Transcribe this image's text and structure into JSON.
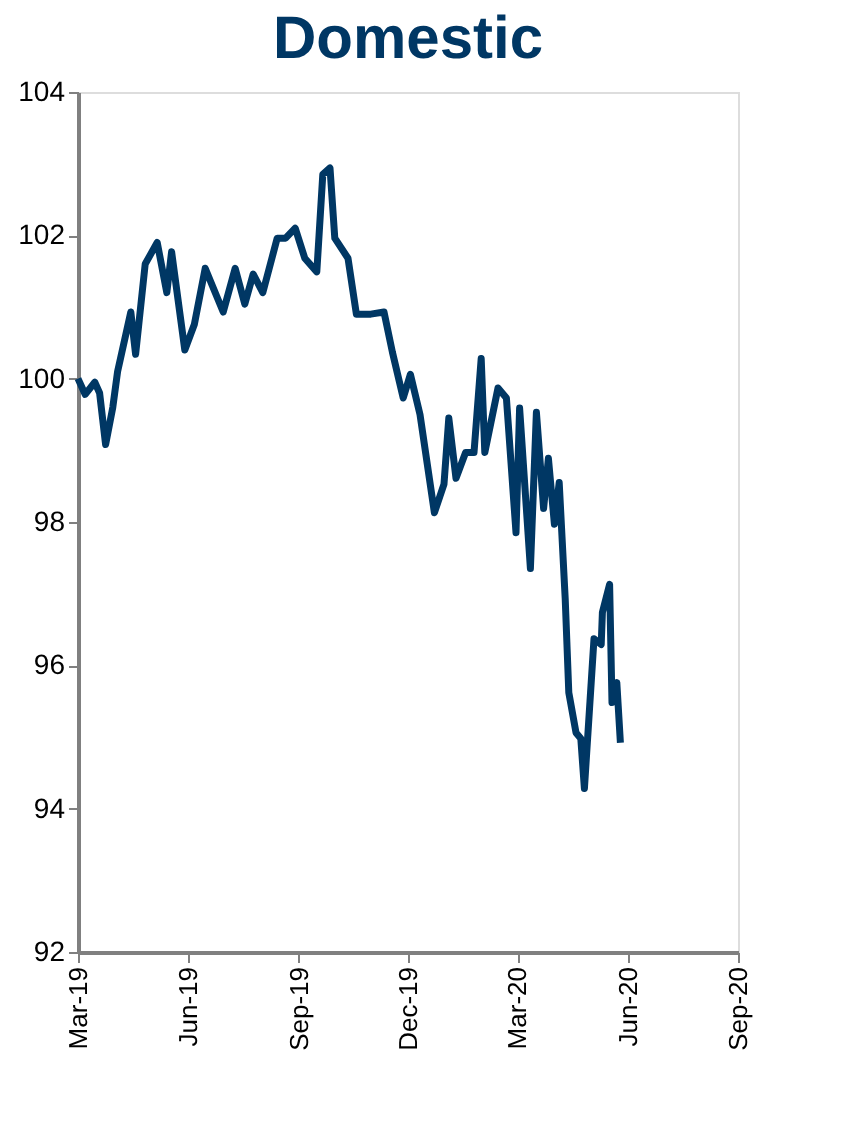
{
  "chart_data": {
    "type": "line",
    "title": "Domestic",
    "x": [
      "2019-03-01",
      "2019-03-07",
      "2019-03-15",
      "2019-03-19",
      "2019-03-24",
      "2019-03-30",
      "2019-04-03",
      "2019-04-14",
      "2019-04-18",
      "2019-04-26",
      "2019-05-06",
      "2019-05-14",
      "2019-05-18",
      "2019-05-29",
      "2019-06-06",
      "2019-06-15",
      "2019-06-30",
      "2019-07-10",
      "2019-07-18",
      "2019-07-25",
      "2019-08-02",
      "2019-08-14",
      "2019-08-21",
      "2019-08-29",
      "2019-09-06",
      "2019-09-16",
      "2019-09-21",
      "2019-09-27",
      "2019-10-01",
      "2019-10-12",
      "2019-10-19",
      "2019-10-31",
      "2019-11-11",
      "2019-11-18",
      "2019-11-27",
      "2019-12-03",
      "2019-12-11",
      "2019-12-23",
      "2019-12-31",
      "2020-01-04",
      "2020-01-10",
      "2020-01-18",
      "2020-01-25",
      "2020-01-31",
      "2020-02-03",
      "2020-02-14",
      "2020-02-21",
      "2020-02-29",
      "2020-03-03",
      "2020-03-12",
      "2020-03-17",
      "2020-03-23",
      "2020-03-27",
      "2020-04-01",
      "2020-04-05",
      "2020-04-10",
      "2020-04-13",
      "2020-04-19",
      "2020-04-23",
      "2020-04-26",
      "2020-05-04",
      "2020-05-10",
      "2020-05-11",
      "2020-05-17",
      "2020-05-19",
      "2020-05-23",
      "2020-05-26"
    ],
    "series": [
      {
        "color": "#003764",
        "values": [
          100.0,
          99.78,
          99.95,
          99.8,
          99.08,
          99.6,
          100.1,
          100.93,
          100.34,
          101.6,
          101.9,
          101.2,
          101.77,
          100.4,
          100.76,
          101.54,
          100.93,
          101.54,
          101.04,
          101.46,
          101.2,
          101.96,
          101.96,
          102.1,
          101.68,
          101.49,
          102.85,
          102.94,
          101.96,
          101.68,
          100.9,
          100.9,
          100.93,
          100.37,
          99.73,
          100.06,
          99.5,
          98.13,
          98.53,
          99.45,
          98.61,
          98.97,
          98.97,
          100.28,
          98.97,
          99.87,
          99.73,
          97.85,
          99.59,
          97.35,
          99.53,
          98.19,
          98.89,
          97.97,
          98.55,
          96.93,
          95.62,
          95.06,
          94.98,
          94.28,
          96.37,
          96.29,
          96.74,
          97.13,
          95.48,
          95.76,
          94.92
        ]
      }
    ],
    "xlim": [
      "2019-03-01",
      "2020-09-01"
    ],
    "xticks": [
      {
        "value": "2019-03-01",
        "label": "Mar-19"
      },
      {
        "value": "2019-06-01",
        "label": "Jun-19"
      },
      {
        "value": "2019-09-01",
        "label": "Sep-19"
      },
      {
        "value": "2019-12-01",
        "label": "Dec-19"
      },
      {
        "value": "2020-03-01",
        "label": "Mar-20"
      },
      {
        "value": "2020-06-01",
        "label": "Jun-20"
      },
      {
        "value": "2020-09-01",
        "label": "Sep-20"
      }
    ],
    "ylim": [
      92,
      104
    ],
    "yticks": [
      92,
      94,
      96,
      98,
      100,
      102,
      104
    ],
    "grid": false,
    "legend": false,
    "marker": "none",
    "line_style": "solid"
  }
}
